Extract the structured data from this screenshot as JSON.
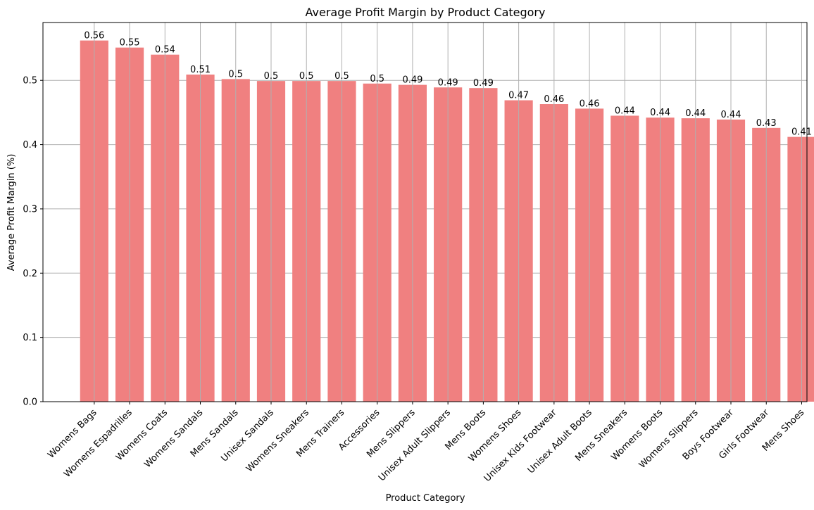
{
  "chart_data": {
    "type": "bar",
    "title": "Average Profit Margin by Product Category",
    "xlabel": "Product Category",
    "ylabel": "Average Profit Margin (%)",
    "categories": [
      "Womens Bags",
      "Womens Espadrilles",
      "Womens Coats",
      "Womens Sandals",
      "Mens Sandals",
      "Unisex Sandals",
      "Womens Sneakers",
      "Mens Trainers",
      "Accessories",
      "Mens Slippers",
      "Unisex Adult Slippers",
      "Mens Boots",
      "Womens Shoes",
      "Unisex Kids Footwear",
      "Unisex Adult Boots",
      "Mens Sneakers",
      "Womens Boots",
      "Womens Slippers",
      "Boys Footwear",
      "Girls Footwear",
      "Mens Shoes"
    ],
    "values": [
      0.562,
      0.551,
      0.54,
      0.509,
      0.502,
      0.499,
      0.499,
      0.499,
      0.495,
      0.493,
      0.489,
      0.488,
      0.469,
      0.463,
      0.456,
      0.445,
      0.442,
      0.441,
      0.439,
      0.426,
      0.412
    ],
    "data_labels": [
      "0.56",
      "0.55",
      "0.54",
      "0.51",
      "0.5",
      "0.5",
      "0.5",
      "0.5",
      "0.5",
      "0.49",
      "0.49",
      "0.49",
      "0.47",
      "0.46",
      "0.46",
      "0.44",
      "0.44",
      "0.44",
      "0.44",
      "0.43",
      "0.41"
    ],
    "ylim": [
      0,
      0.59
    ],
    "yticks": [
      0.0,
      0.1,
      0.2,
      0.3,
      0.4,
      0.5
    ],
    "ytick_labels": [
      "0.0",
      "0.1",
      "0.2",
      "0.3",
      "0.4",
      "0.5"
    ],
    "grid": true,
    "bar_color": "#f08080",
    "grid_color": "#b0b0b0"
  }
}
